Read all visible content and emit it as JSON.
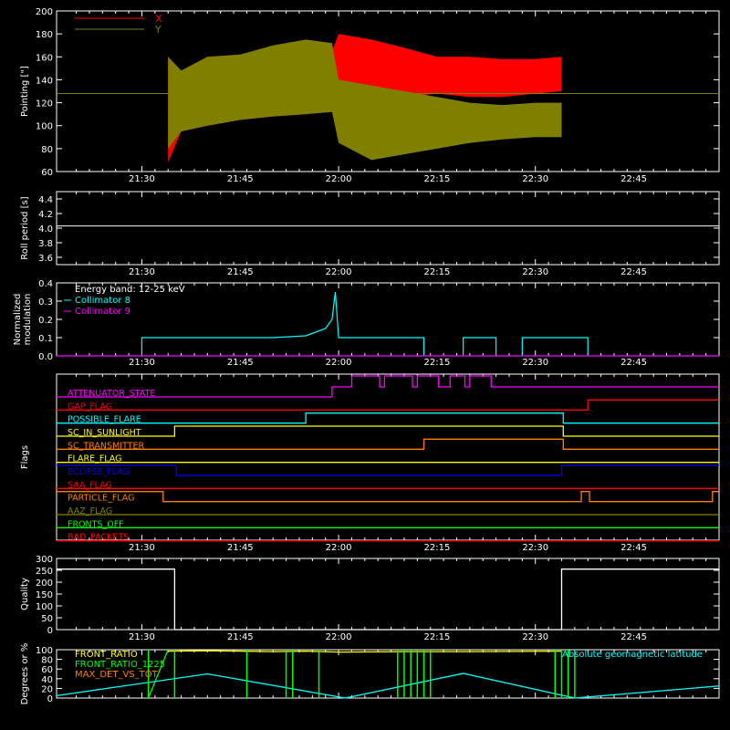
{
  "chart_data": [
    {
      "type": "area",
      "ylabel": "Pointing [\"]",
      "ylim": [
        60,
        200
      ],
      "yticks": [
        60,
        80,
        100,
        120,
        140,
        160,
        180,
        200
      ],
      "time_ticks": [
        "21:30",
        "21:45",
        "22:00",
        "22:15",
        "22:30",
        "22:45"
      ],
      "legend": [
        "X",
        "Y"
      ],
      "colors": {
        "X": "#ff0000",
        "Y": "#808000"
      },
      "reference_line": 128,
      "series": [
        {
          "name": "X",
          "x": [
            "21:34",
            "21:36",
            "21:40",
            "21:45",
            "21:50",
            "21:55",
            "21:59",
            "22:00",
            "22:05",
            "22:10",
            "22:15",
            "22:20",
            "22:25",
            "22:30",
            "22:34"
          ],
          "upper": [
            160,
            148,
            160,
            162,
            165,
            167,
            165,
            180,
            175,
            168,
            160,
            160,
            158,
            158,
            160
          ],
          "lower": [
            68,
            95,
            100,
            105,
            108,
            110,
            112,
            125,
            118,
            125,
            128,
            125,
            125,
            128,
            130
          ]
        },
        {
          "name": "Y",
          "x": [
            "21:34",
            "21:36",
            "21:40",
            "21:45",
            "21:50",
            "21:55",
            "21:59",
            "22:00",
            "22:05",
            "22:10",
            "22:15",
            "22:20",
            "22:25",
            "22:30",
            "22:34"
          ],
          "upper": [
            160,
            148,
            160,
            162,
            170,
            175,
            172,
            140,
            135,
            130,
            125,
            120,
            118,
            120,
            120
          ],
          "lower": [
            80,
            95,
            100,
            105,
            108,
            110,
            112,
            85,
            70,
            75,
            80,
            85,
            88,
            90,
            90
          ]
        }
      ]
    },
    {
      "type": "line",
      "ylabel": "Roll period [s]",
      "ylim": [
        3.5,
        4.5
      ],
      "yticks": [
        3.6,
        3.8,
        4.0,
        4.2,
        4.4
      ],
      "time_ticks": [
        "21:30",
        "21:45",
        "22:00",
        "22:15",
        "22:30",
        "22:45"
      ],
      "series": [
        {
          "name": "",
          "x": [
            "21:17",
            "22:58"
          ],
          "values": [
            4.03,
            4.03
          ]
        }
      ]
    },
    {
      "type": "line",
      "ylabel": "Normalized modulation",
      "ylim": [
        0,
        0.4
      ],
      "yticks": [
        0.0,
        0.1,
        0.2,
        0.3,
        0.4
      ],
      "time_ticks": [
        "21:30",
        "21:45",
        "22:00",
        "22:15",
        "22:30",
        "22:45"
      ],
      "annotation": "Energy band: 12-25 keV",
      "series": [
        {
          "name": "Collimator 8",
          "color": "#00ffff",
          "segments": [
            {
              "x": [
                "21:30",
                "21:40",
                "21:50",
                "21:55",
                "21:58",
                "21:59",
                "21:59.5",
                "22:00",
                "22:05",
                "22:10",
                "22:13"
              ],
              "values": [
                0.1,
                0.1,
                0.1,
                0.11,
                0.15,
                0.2,
                0.35,
                0.1,
                0.1,
                0.1,
                0.1
              ]
            },
            {
              "x": [
                "22:19",
                "22:24"
              ],
              "values": [
                0.1,
                0.1
              ]
            },
            {
              "x": [
                "22:28",
                "22:38"
              ],
              "values": [
                0.1,
                0.1
              ]
            }
          ]
        },
        {
          "name": "Collimator 9",
          "color": "#ff00ff",
          "segments": [
            {
              "x": [
                "21:17",
                "22:58"
              ],
              "values": [
                0.0,
                0.0
              ]
            }
          ]
        }
      ]
    },
    {
      "type": "flags",
      "ylabel": "Flags",
      "time_ticks": [
        "21:30",
        "21:45",
        "22:00",
        "22:15",
        "22:30",
        "22:45"
      ],
      "flags": [
        {
          "name": "ATTENUATOR_STATE",
          "color": "#ff00ff",
          "on": [
            [
              "21:59",
              "22:58"
            ]
          ],
          "pulses": [
            [
              "22:02",
              "22:06"
            ],
            [
              "22:07",
              "22:11"
            ],
            [
              "22:12",
              "22:15"
            ],
            [
              "22:17",
              "22:19"
            ],
            [
              "22:20",
              "22:23"
            ]
          ]
        },
        {
          "name": "GAP_FLAG",
          "color": "#ff0000",
          "on": [
            [
              "22:38",
              "22:58"
            ]
          ]
        },
        {
          "name": "POSSIBLE_FLARE",
          "color": "#00ffff",
          "on": [
            [
              "21:55",
              "22:34"
            ]
          ]
        },
        {
          "name": "SC_IN_SUNLIGHT",
          "color": "#ffff00",
          "on": [
            [
              "21:35",
              "22:34"
            ]
          ]
        },
        {
          "name": "SC_TRANSMITTER",
          "color": "#ff8000",
          "on": [
            [
              "22:13",
              "22:34"
            ]
          ]
        },
        {
          "name": "FLARE_FLAG",
          "color": "#ffff00",
          "on": []
        },
        {
          "name": "ECLIPSE_FLAG",
          "color": "#0000ff",
          "on": [
            [
              "21:17",
              "21:35"
            ],
            [
              "22:34",
              "22:58"
            ]
          ]
        },
        {
          "name": "SAA_FLAG",
          "color": "#ff0000",
          "on": []
        },
        {
          "name": "PARTICLE_FLAG",
          "color": "#ff8000",
          "on": [
            [
              "21:17",
              "21:33"
            ],
            [
              "22:37",
              "22:38"
            ],
            [
              "22:57",
              "22:58"
            ]
          ]
        },
        {
          "name": "AAZ_FLAG",
          "color": "#808000",
          "on": []
        },
        {
          "name": "FRONTS_OFF",
          "color": "#00ff00",
          "on": []
        },
        {
          "name": "BAD_PACKETS",
          "color": "#ff0000",
          "on": []
        }
      ]
    },
    {
      "type": "line",
      "ylabel": "Quality",
      "ylim": [
        0,
        300
      ],
      "yticks": [
        0,
        50,
        100,
        150,
        200,
        250,
        300
      ],
      "time_ticks": [
        "21:30",
        "21:45",
        "22:00",
        "22:15",
        "22:30",
        "22:45"
      ],
      "series": [
        {
          "name": "",
          "x": [
            "21:17",
            "21:35",
            "21:35",
            "22:34",
            "22:34",
            "22:58"
          ],
          "values": [
            255,
            255,
            0,
            0,
            255,
            255
          ]
        }
      ]
    },
    {
      "type": "line",
      "ylabel": "Degrees or %",
      "ylim": [
        0,
        100
      ],
      "yticks": [
        0,
        20,
        40,
        60,
        80,
        100
      ],
      "time_ticks": [
        "21:30",
        "21:45",
        "22:00",
        "22:15",
        "22:30",
        "22:45"
      ],
      "annotation": "Absolute geomagnetic latitude",
      "series": [
        {
          "name": "FRONT_RATIO",
          "color": "#ffff00",
          "x": [
            "21:34",
            "21:40",
            "21:50",
            "21:55",
            "22:00",
            "22:10",
            "22:20",
            "22:34"
          ],
          "values": [
            97,
            98,
            96,
            97,
            95,
            96,
            96,
            97
          ]
        },
        {
          "name": "FRONT_RATIO_1225",
          "color": "#00ff00",
          "x": [
            "21:31",
            "21:34"
          ],
          "values": [
            0,
            100
          ]
        },
        {
          "name": "MAX_DET_VS_TOT",
          "color": "#ff8000",
          "x": [],
          "values": []
        },
        {
          "name": "Absolute geomagnetic latitude",
          "color": "#00ffff",
          "x": [
            "21:17",
            "21:40",
            "22:01",
            "22:19",
            "22:36",
            "22:58"
          ],
          "values": [
            5,
            50,
            0,
            51,
            0,
            25
          ]
        }
      ]
    }
  ]
}
